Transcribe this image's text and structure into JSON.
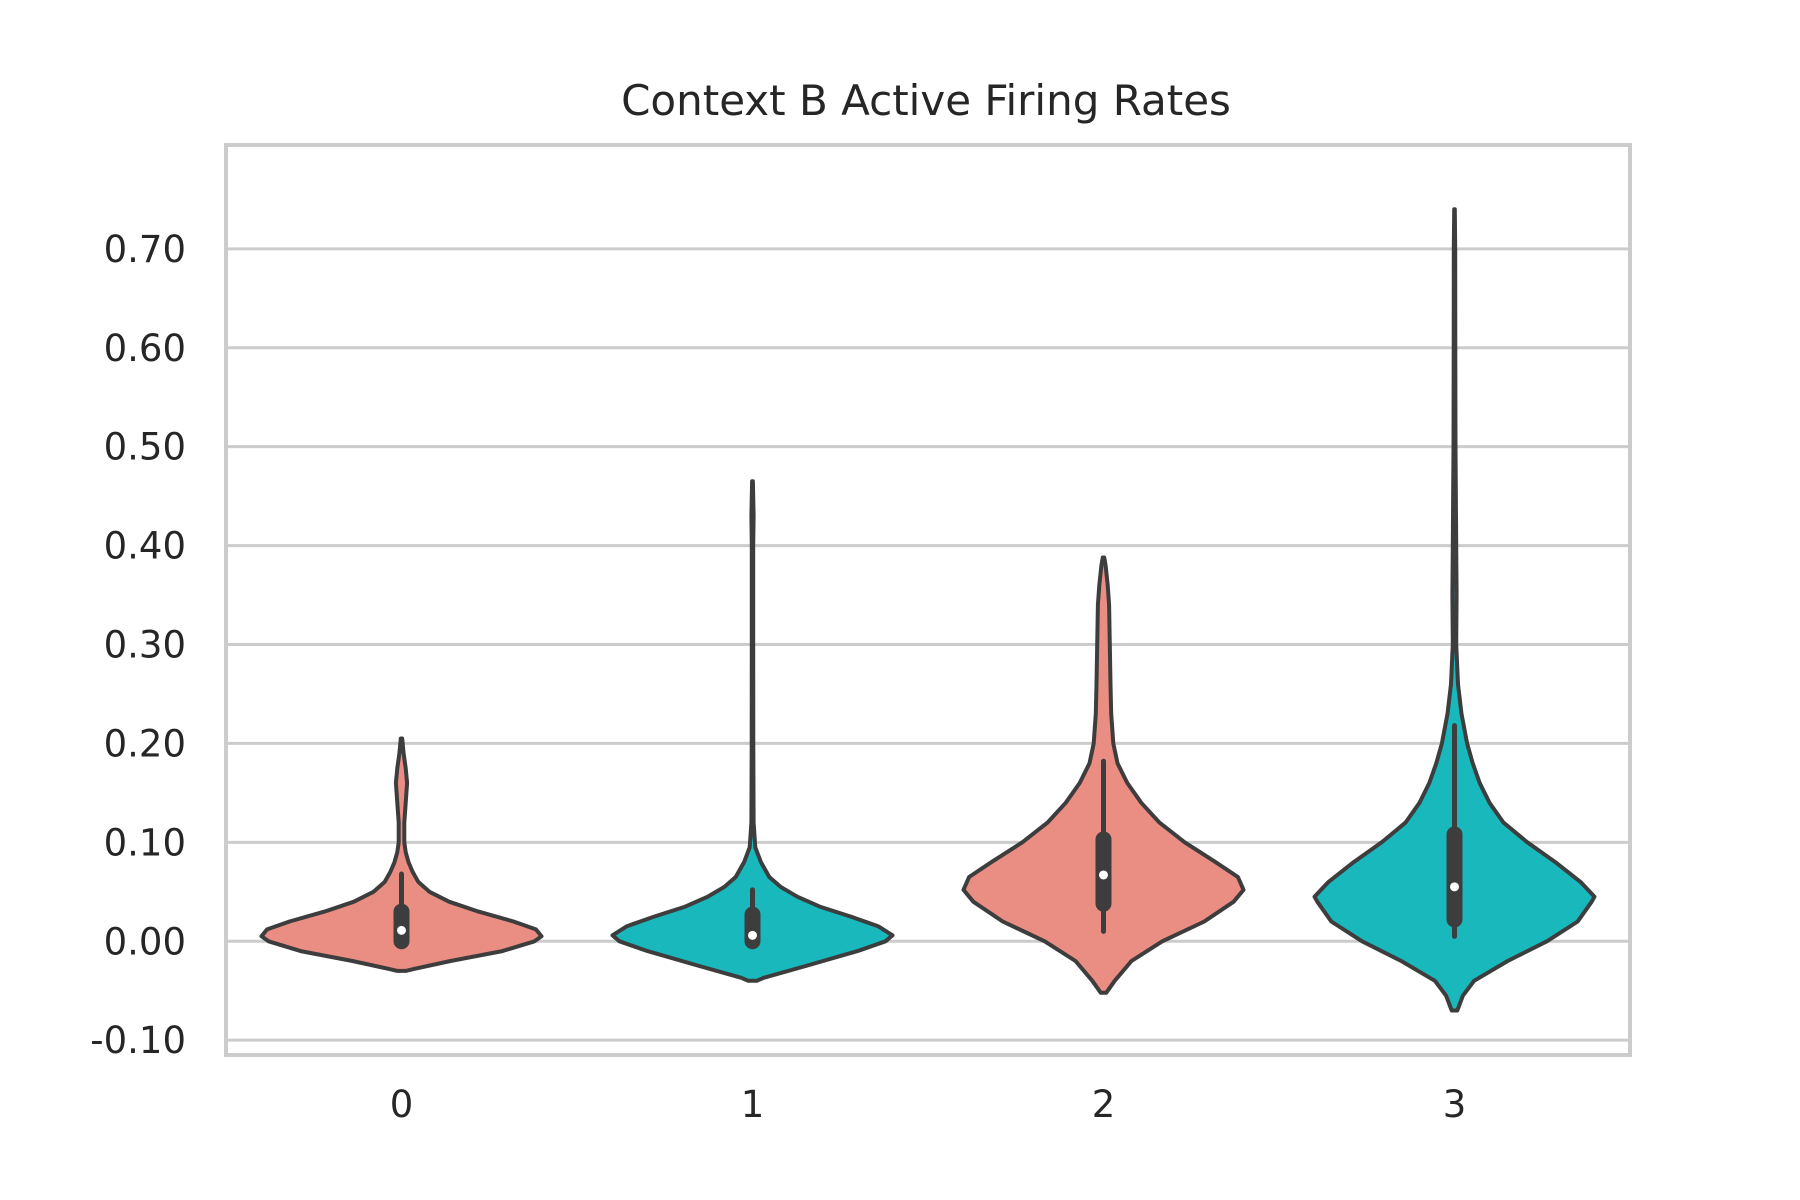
{
  "chart_data": {
    "type": "violin",
    "title": "Context B Active Firing Rates",
    "xlabel": "",
    "ylabel": "",
    "ylim": [
      -0.115,
      0.805
    ],
    "grid": true,
    "legend": "none",
    "y_ticks": [
      -0.1,
      0.0,
      0.1,
      0.2,
      0.3,
      0.4,
      0.5,
      0.6,
      0.7
    ],
    "y_tick_labels": [
      "-0.10",
      "0.00",
      "0.10",
      "0.20",
      "0.30",
      "0.40",
      "0.50",
      "0.60",
      "0.70"
    ],
    "categories": [
      "0",
      "1",
      "2",
      "3"
    ],
    "colors": {
      "salmon": "#ea8e83",
      "teal": "#19b8bd",
      "outline": "#3d3d3d",
      "grid": "#cccccc",
      "text": "#262626"
    },
    "violins": [
      {
        "category": "0",
        "color": "#ea8e83",
        "min": 0.0,
        "q1": 0.0,
        "median": 0.011,
        "q3": 0.03,
        "whisker_high": 0.068,
        "kde_low": -0.03,
        "kde_high": 0.205,
        "density": [
          [
            -0.03,
            0.03
          ],
          [
            -0.028,
            0.09
          ],
          [
            -0.02,
            0.35
          ],
          [
            -0.01,
            0.72
          ],
          [
            0.0,
            0.95
          ],
          [
            0.005,
            1.0
          ],
          [
            0.012,
            0.96
          ],
          [
            0.02,
            0.8
          ],
          [
            0.03,
            0.55
          ],
          [
            0.04,
            0.34
          ],
          [
            0.05,
            0.2
          ],
          [
            0.06,
            0.12
          ],
          [
            0.07,
            0.08
          ],
          [
            0.08,
            0.05
          ],
          [
            0.09,
            0.03
          ],
          [
            0.1,
            0.02
          ],
          [
            0.12,
            0.02
          ],
          [
            0.14,
            0.03
          ],
          [
            0.16,
            0.04
          ],
          [
            0.175,
            0.03
          ],
          [
            0.19,
            0.015
          ],
          [
            0.205,
            0.005
          ]
        ]
      },
      {
        "category": "1",
        "color": "#19b8bd",
        "min": 0.0,
        "q1": 0.0,
        "median": 0.006,
        "q3": 0.027,
        "whisker_high": 0.052,
        "kde_low": -0.04,
        "kde_high": 0.465,
        "density": [
          [
            -0.04,
            0.03
          ],
          [
            -0.037,
            0.08
          ],
          [
            -0.025,
            0.38
          ],
          [
            -0.01,
            0.75
          ],
          [
            0.0,
            0.95
          ],
          [
            0.006,
            1.0
          ],
          [
            0.015,
            0.9
          ],
          [
            0.025,
            0.7
          ],
          [
            0.035,
            0.48
          ],
          [
            0.045,
            0.32
          ],
          [
            0.055,
            0.2
          ],
          [
            0.065,
            0.12
          ],
          [
            0.08,
            0.06
          ],
          [
            0.095,
            0.02
          ],
          [
            0.12,
            0.008
          ],
          [
            0.2,
            0.006
          ],
          [
            0.3,
            0.005
          ],
          [
            0.4,
            0.005
          ],
          [
            0.43,
            0.008
          ],
          [
            0.45,
            0.005
          ],
          [
            0.465,
            0.003
          ]
        ]
      },
      {
        "category": "2",
        "color": "#ea8e83",
        "min": 0.01,
        "q1": 0.038,
        "median": 0.067,
        "q3": 0.103,
        "whisker_high": 0.182,
        "kde_low": -0.052,
        "kde_high": 0.388,
        "density": [
          [
            -0.052,
            0.02
          ],
          [
            -0.04,
            0.08
          ],
          [
            -0.02,
            0.2
          ],
          [
            0.0,
            0.42
          ],
          [
            0.02,
            0.72
          ],
          [
            0.04,
            0.93
          ],
          [
            0.052,
            1.0
          ],
          [
            0.065,
            0.96
          ],
          [
            0.08,
            0.8
          ],
          [
            0.1,
            0.58
          ],
          [
            0.12,
            0.4
          ],
          [
            0.14,
            0.27
          ],
          [
            0.16,
            0.17
          ],
          [
            0.18,
            0.1
          ],
          [
            0.2,
            0.07
          ],
          [
            0.23,
            0.055
          ],
          [
            0.26,
            0.05
          ],
          [
            0.3,
            0.045
          ],
          [
            0.34,
            0.04
          ],
          [
            0.36,
            0.03
          ],
          [
            0.38,
            0.015
          ],
          [
            0.388,
            0.005
          ]
        ]
      },
      {
        "category": "3",
        "color": "#19b8bd",
        "min": 0.005,
        "q1": 0.022,
        "median": 0.055,
        "q3": 0.108,
        "whisker_high": 0.218,
        "kde_low": -0.07,
        "kde_high": 0.74,
        "density": [
          [
            -0.07,
            0.02
          ],
          [
            -0.055,
            0.06
          ],
          [
            -0.04,
            0.14
          ],
          [
            -0.02,
            0.38
          ],
          [
            0.0,
            0.66
          ],
          [
            0.02,
            0.88
          ],
          [
            0.04,
            0.98
          ],
          [
            0.045,
            1.0
          ],
          [
            0.06,
            0.9
          ],
          [
            0.08,
            0.72
          ],
          [
            0.1,
            0.52
          ],
          [
            0.12,
            0.35
          ],
          [
            0.14,
            0.25
          ],
          [
            0.16,
            0.18
          ],
          [
            0.18,
            0.13
          ],
          [
            0.2,
            0.09
          ],
          [
            0.23,
            0.05
          ],
          [
            0.26,
            0.025
          ],
          [
            0.3,
            0.012
          ],
          [
            0.35,
            0.015
          ],
          [
            0.4,
            0.012
          ],
          [
            0.5,
            0.007
          ],
          [
            0.6,
            0.006
          ],
          [
            0.7,
            0.005
          ],
          [
            0.74,
            0.002
          ]
        ]
      }
    ]
  }
}
